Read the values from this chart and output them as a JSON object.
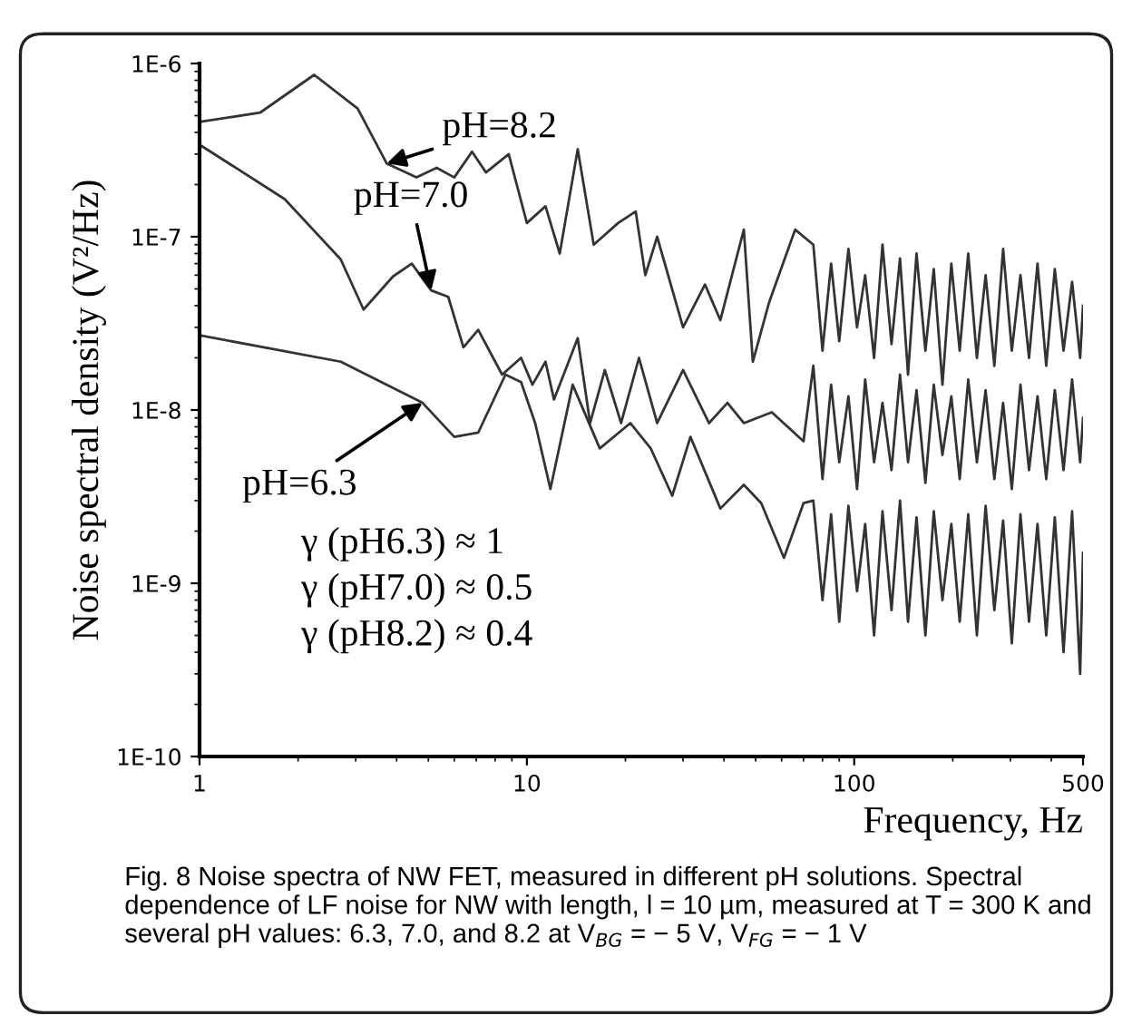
{
  "chart_data": {
    "type": "line",
    "xlabel": "Frequency, Hz",
    "ylabel": "Noise spectral density (V²/Hz)",
    "log": "xy",
    "xlim": [
      1,
      500
    ],
    "ylim": [
      1e-10,
      1e-06
    ],
    "xticks": [
      1,
      10,
      100,
      500
    ],
    "yticks": [
      {
        "value": 1e-10,
        "label": "1E-10"
      },
      {
        "value": 1e-09,
        "label": "1E-9"
      },
      {
        "value": 1e-08,
        "label": "1E-8"
      },
      {
        "value": 1e-07,
        "label": "1E-7"
      },
      {
        "value": 1e-06,
        "label": "1E-6"
      }
    ],
    "grid": false,
    "marker": "none",
    "line_style": "solid",
    "series": [
      {
        "color": "#333333",
        "x": [
          1,
          1.53,
          2.24,
          3.04,
          3.73,
          4.6,
          5.3,
          6.0,
          6.8,
          7.5,
          8.8,
          10,
          11.4,
          12.6,
          14.3,
          16,
          19,
          21.5,
          23,
          25,
          30,
          35,
          39,
          46,
          49,
          55,
          66,
          75,
          80,
          85,
          90,
          96,
          102,
          108,
          115,
          122,
          130,
          138,
          146,
          155,
          165,
          175,
          186,
          198,
          210,
          223,
          237,
          252,
          268,
          285,
          303,
          322,
          342,
          363,
          386,
          410,
          436,
          463,
          490,
          500
        ],
        "values": [
          4.6e-07,
          5.2e-07,
          8.6e-07,
          5.5e-07,
          2.65e-07,
          2.2e-07,
          2.5e-07,
          2.2e-07,
          3.1e-07,
          2.35e-07,
          3e-07,
          1.2e-07,
          1.5e-07,
          8e-08,
          3.2e-07,
          9e-08,
          1.2e-07,
          1.4e-07,
          6e-08,
          1e-07,
          3e-08,
          5.3e-08,
          3.3e-08,
          1.1e-07,
          1.9e-08,
          4.2e-08,
          1.1e-07,
          9e-08,
          2.2e-08,
          7e-08,
          2.5e-08,
          8.5e-08,
          3e-08,
          6e-08,
          2e-08,
          9e-08,
          2.4e-08,
          7.5e-08,
          1.6e-08,
          8e-08,
          2.2e-08,
          6.5e-08,
          1.4e-08,
          7e-08,
          2.2e-08,
          8e-08,
          2e-08,
          6e-08,
          1.8e-08,
          8.5e-08,
          2.2e-08,
          6e-08,
          2e-08,
          7e-08,
          1.8e-08,
          6.5e-08,
          2.2e-08,
          5.5e-08,
          2e-08,
          4e-08
        ]
      },
      {
        "color": "#333333",
        "x": [
          1,
          1.82,
          2.7,
          3.17,
          3.9,
          4.45,
          5.1,
          5.75,
          6.4,
          7.1,
          8.4,
          9.6,
          10.4,
          11.4,
          12.1,
          14.3,
          15.6,
          17.3,
          19.4,
          22,
          25,
          30,
          36,
          41,
          46,
          56,
          70,
          75,
          80,
          85,
          90,
          96,
          102,
          108,
          115,
          122,
          130,
          138,
          146,
          155,
          165,
          175,
          186,
          198,
          210,
          223,
          237,
          252,
          268,
          285,
          303,
          322,
          342,
          363,
          386,
          410,
          436,
          463,
          490,
          500
        ],
        "values": [
          3.4e-07,
          1.65e-07,
          7.4e-08,
          3.8e-08,
          5.9e-08,
          7e-08,
          4.9e-08,
          4.5e-08,
          2.3e-08,
          2.9e-08,
          1.6e-08,
          2e-08,
          1.4e-08,
          1.9e-08,
          1.15e-08,
          2.6e-08,
          8.4e-09,
          1.7e-08,
          8.4e-09,
          2e-08,
          8.4e-09,
          1.7e-08,
          8.4e-09,
          1.1e-08,
          8.4e-09,
          9.7e-09,
          6.6e-09,
          1.8e-08,
          4e-09,
          1.4e-08,
          5e-09,
          1.2e-08,
          3.5e-09,
          1.5e-08,
          5e-09,
          1.1e-08,
          4.5e-09,
          1.6e-08,
          5e-09,
          1.3e-08,
          3.8e-09,
          1.4e-08,
          5.5e-09,
          1.2e-08,
          4e-09,
          1.5e-08,
          5e-09,
          1.3e-08,
          4e-09,
          1.1e-08,
          3.5e-09,
          1.4e-08,
          4.5e-09,
          1.2e-08,
          4e-09,
          1.3e-08,
          4.5e-09,
          1.5e-08,
          5e-09,
          9e-09
        ]
      },
      {
        "color": "#333333",
        "x": [
          1,
          2.7,
          4.8,
          6.0,
          7.1,
          8.6,
          9.6,
          10.6,
          11.8,
          13.8,
          16.7,
          20.7,
          23.9,
          27.8,
          31.6,
          39,
          46,
          52,
          61,
          70,
          75,
          80,
          85,
          90,
          96,
          102,
          108,
          115,
          122,
          130,
          138,
          146,
          155,
          165,
          175,
          186,
          198,
          210,
          223,
          237,
          252,
          268,
          285,
          303,
          322,
          342,
          363,
          386,
          410,
          436,
          463,
          490,
          500
        ],
        "values": [
          2.7e-08,
          1.9e-08,
          1.1e-08,
          7e-09,
          7.4e-09,
          1.6e-08,
          1.45e-08,
          8.4e-09,
          3.5e-09,
          1.4e-08,
          6e-09,
          8.4e-09,
          6e-09,
          3.2e-09,
          7e-09,
          2.7e-09,
          3.7e-09,
          2.9e-09,
          1.4e-09,
          2.9e-09,
          3e-09,
          8e-10,
          2.5e-09,
          6e-10,
          2.8e-09,
          9e-10,
          2.2e-09,
          5e-10,
          2.6e-09,
          7e-10,
          3e-09,
          6e-10,
          2.4e-09,
          5e-10,
          2.6e-09,
          8e-10,
          2.2e-09,
          6e-10,
          2.5e-09,
          5e-10,
          2.8e-09,
          7e-10,
          2.3e-09,
          4.5e-10,
          2.5e-09,
          6e-10,
          2.2e-09,
          5e-10,
          2.4e-09,
          4e-10,
          2.6e-09,
          3e-10,
          1.5e-09
        ]
      }
    ],
    "annotations": [
      {
        "text": "pH=8.2",
        "x": 3.73,
        "y": 2.65e-07
      },
      {
        "text": "pH=7.0",
        "x": 5.1,
        "y": 4.9e-08
      },
      {
        "text": "pH=6.3",
        "x": 4.8,
        "y": 1.1e-08
      },
      "γ (pH6.3) ≈ 1\nγ (pH7.0) ≈ 0.5\nγ (pH8.2) ≈ 0.4",
      "Fig. 8 Noise spectra of NW FET, measured in different pH solutions. Spectral dependence of LF noise for NW with length, l = 10 µm, measured at T = 300 K and several pH values: 6.3, 7.0, and 8.2 at V$_{BG}$ = − 5 V, V$_{FG}$ = − 1 V"
    ]
  }
}
